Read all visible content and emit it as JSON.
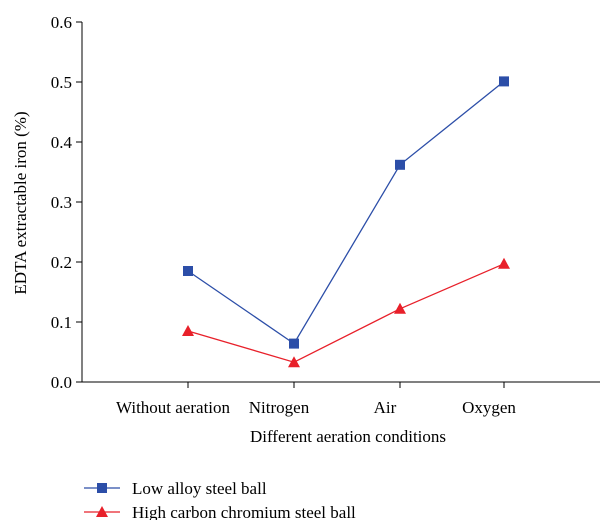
{
  "chart_data": {
    "type": "line",
    "categories": [
      "Without aeration",
      "Nitrogen",
      "Air",
      "Oxygen"
    ],
    "series": [
      {
        "name": "Low alloy steel ball",
        "values": [
          0.185,
          0.064,
          0.362,
          0.501
        ],
        "color": "#2c4ea8",
        "marker": "square"
      },
      {
        "name": "High carbon chromium steel ball",
        "values": [
          0.085,
          0.033,
          0.122,
          0.197
        ],
        "color": "#e8202a",
        "marker": "triangle"
      }
    ],
    "xlabel": "Different aeration conditions",
    "ylabel": "EDTA extractable iron (%)",
    "ylim": [
      0,
      0.6
    ],
    "yticks": [
      "0.0",
      "0.1",
      "0.2",
      "0.3",
      "0.4",
      "0.5",
      "0.6"
    ],
    "grid": false,
    "legend_position": "bottom-left"
  }
}
